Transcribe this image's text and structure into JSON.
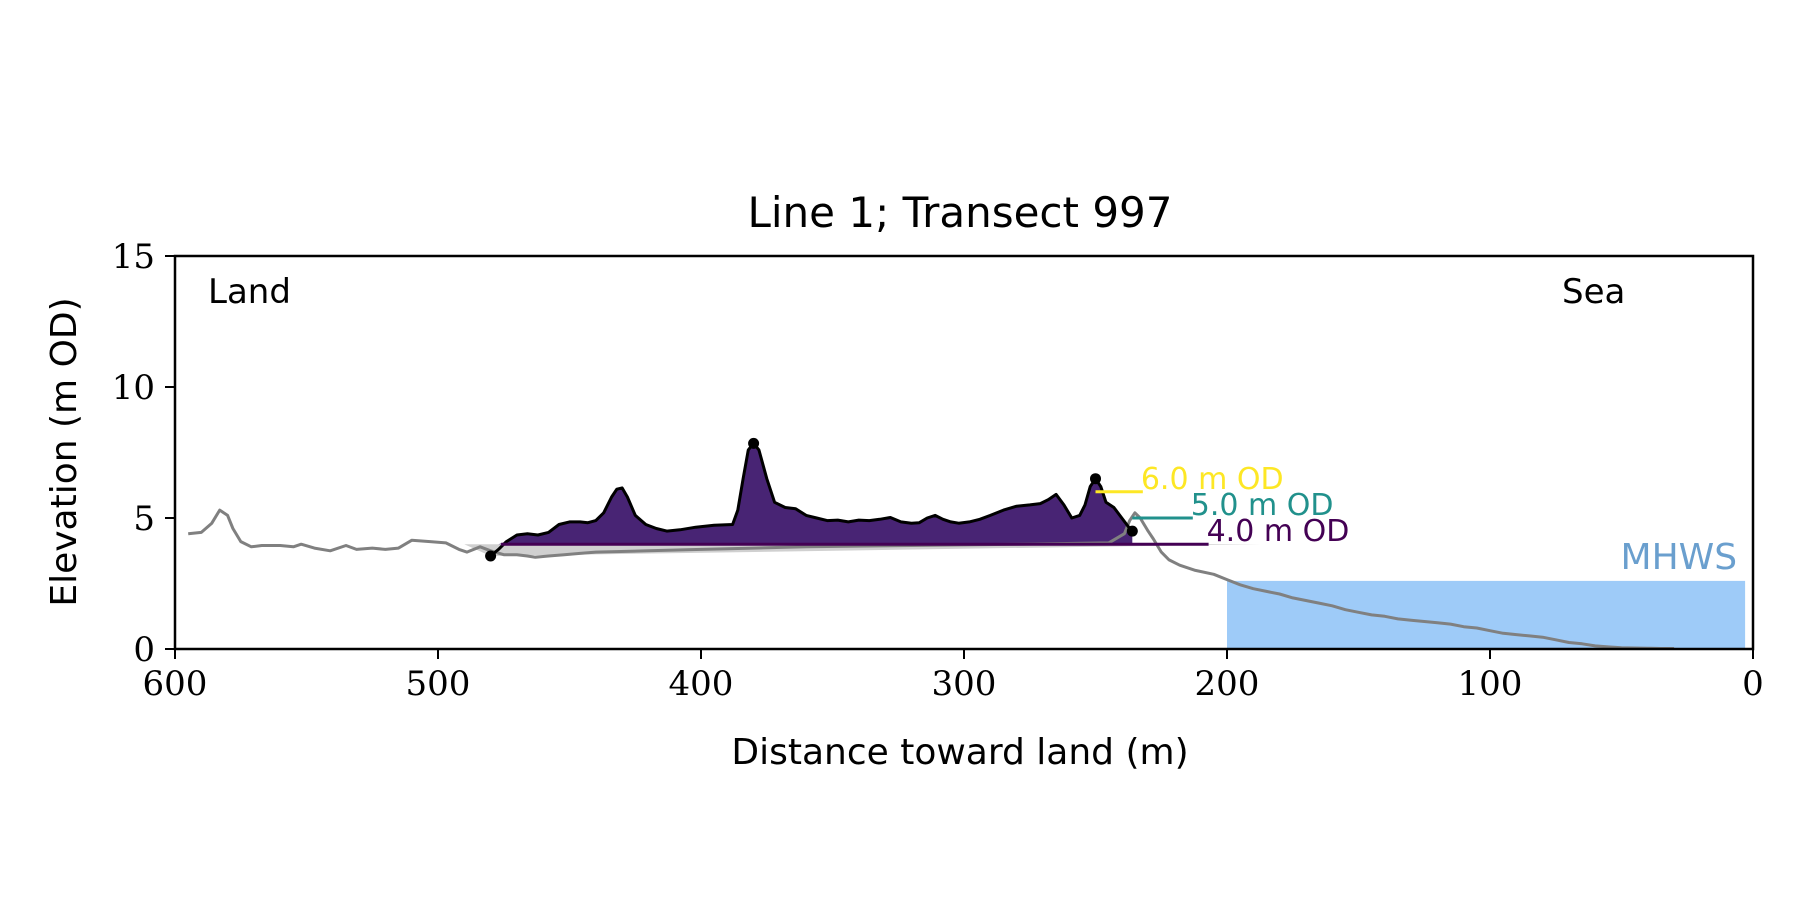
{
  "chart_data": {
    "type": "area",
    "title": "Line 1; Transect 997",
    "xlabel": "Distance toward land (m)",
    "ylabel": "Elevation (m OD)",
    "xlim": [
      600,
      0
    ],
    "ylim": [
      0,
      15
    ],
    "x_ticks": [
      600,
      500,
      400,
      300,
      200,
      100,
      0
    ],
    "y_ticks": [
      0,
      5,
      10,
      15
    ],
    "grid": false,
    "corner_labels": {
      "left": "Land",
      "right": "Sea"
    },
    "mhws": {
      "label": "MHWS",
      "elevation": 2.6,
      "x_from": 200,
      "x_to": 3,
      "color": "#9ecbf8",
      "label_color": "#6a9fce"
    },
    "profile": {
      "color": "#808080",
      "points": [
        [
          595,
          4.4
        ],
        [
          590,
          4.45
        ],
        [
          586,
          4.8
        ],
        [
          583,
          5.3
        ],
        [
          580,
          5.1
        ],
        [
          578,
          4.6
        ],
        [
          575,
          4.1
        ],
        [
          571,
          3.9
        ],
        [
          567,
          3.95
        ],
        [
          560,
          3.95
        ],
        [
          555,
          3.9
        ],
        [
          552,
          4.0
        ],
        [
          547,
          3.85
        ],
        [
          541,
          3.75
        ],
        [
          535,
          3.95
        ],
        [
          531,
          3.8
        ],
        [
          525,
          3.85
        ],
        [
          520,
          3.8
        ],
        [
          515,
          3.85
        ],
        [
          510,
          4.15
        ],
        [
          503,
          4.1
        ],
        [
          497,
          4.05
        ],
        [
          492,
          3.8
        ],
        [
          489,
          3.7
        ],
        [
          484,
          3.9
        ],
        [
          480,
          3.75
        ],
        [
          475,
          3.6
        ],
        [
          470,
          3.6
        ],
        [
          466,
          3.55
        ],
        [
          463,
          3.5
        ],
        [
          458,
          3.55
        ],
        [
          452,
          3.6
        ],
        [
          446,
          3.65
        ],
        [
          440,
          3.7
        ],
        [
          420,
          3.75
        ],
        [
          400,
          3.8
        ],
        [
          380,
          3.85
        ],
        [
          360,
          3.9
        ],
        [
          320,
          3.95
        ],
        [
          280,
          4.0
        ],
        [
          245,
          4.05
        ],
        [
          239,
          4.4
        ],
        [
          237,
          4.9
        ],
        [
          235,
          5.2
        ],
        [
          233,
          5.0
        ],
        [
          230,
          4.5
        ],
        [
          228,
          4.2
        ],
        [
          225,
          3.7
        ],
        [
          222,
          3.4
        ],
        [
          218,
          3.2
        ],
        [
          212,
          3.0
        ],
        [
          205,
          2.85
        ],
        [
          200,
          2.65
        ],
        [
          195,
          2.45
        ],
        [
          190,
          2.3
        ],
        [
          185,
          2.2
        ],
        [
          180,
          2.1
        ],
        [
          175,
          1.95
        ],
        [
          170,
          1.85
        ],
        [
          165,
          1.75
        ],
        [
          160,
          1.65
        ],
        [
          155,
          1.5
        ],
        [
          150,
          1.4
        ],
        [
          145,
          1.3
        ],
        [
          140,
          1.25
        ],
        [
          135,
          1.15
        ],
        [
          130,
          1.1
        ],
        [
          125,
          1.05
        ],
        [
          120,
          1.0
        ],
        [
          115,
          0.95
        ],
        [
          110,
          0.85
        ],
        [
          105,
          0.8
        ],
        [
          100,
          0.7
        ],
        [
          95,
          0.6
        ],
        [
          90,
          0.55
        ],
        [
          85,
          0.5
        ],
        [
          80,
          0.45
        ],
        [
          75,
          0.35
        ],
        [
          70,
          0.25
        ],
        [
          65,
          0.2
        ],
        [
          60,
          0.12
        ],
        [
          55,
          0.08
        ],
        [
          50,
          0.05
        ],
        [
          45,
          0.04
        ],
        [
          40,
          0.03
        ],
        [
          35,
          0.02
        ],
        [
          30,
          0.02
        ]
      ]
    },
    "dune": {
      "fill_color": "#482474",
      "line_color": "#000000",
      "points": [
        [
          480,
          3.55
        ],
        [
          477,
          3.8
        ],
        [
          474,
          4.1
        ],
        [
          470,
          4.35
        ],
        [
          466,
          4.4
        ],
        [
          462,
          4.35
        ],
        [
          458,
          4.45
        ],
        [
          454,
          4.75
        ],
        [
          450,
          4.85
        ],
        [
          446,
          4.85
        ],
        [
          443,
          4.82
        ],
        [
          440,
          4.9
        ],
        [
          437,
          5.2
        ],
        [
          434,
          5.8
        ],
        [
          432,
          6.1
        ],
        [
          430,
          6.15
        ],
        [
          428,
          5.8
        ],
        [
          425,
          5.1
        ],
        [
          421,
          4.75
        ],
        [
          417,
          4.6
        ],
        [
          413,
          4.5
        ],
        [
          408,
          4.55
        ],
        [
          402,
          4.65
        ],
        [
          395,
          4.72
        ],
        [
          388,
          4.75
        ],
        [
          386,
          5.3
        ],
        [
          384,
          6.5
        ],
        [
          382,
          7.6
        ],
        [
          380,
          7.85
        ],
        [
          378,
          7.6
        ],
        [
          375,
          6.5
        ],
        [
          372,
          5.6
        ],
        [
          368,
          5.4
        ],
        [
          364,
          5.35
        ],
        [
          360,
          5.1
        ],
        [
          356,
          5.0
        ],
        [
          352,
          4.9
        ],
        [
          348,
          4.92
        ],
        [
          344,
          4.85
        ],
        [
          340,
          4.92
        ],
        [
          336,
          4.9
        ],
        [
          332,
          4.95
        ],
        [
          328,
          5.02
        ],
        [
          324,
          4.85
        ],
        [
          320,
          4.8
        ],
        [
          317,
          4.82
        ],
        [
          314,
          5.0
        ],
        [
          311,
          5.1
        ],
        [
          308,
          4.95
        ],
        [
          305,
          4.85
        ],
        [
          302,
          4.8
        ],
        [
          298,
          4.85
        ],
        [
          294,
          4.95
        ],
        [
          290,
          5.1
        ],
        [
          285,
          5.3
        ],
        [
          280,
          5.45
        ],
        [
          275,
          5.5
        ],
        [
          271,
          5.55
        ],
        [
          268,
          5.7
        ],
        [
          265,
          5.9
        ],
        [
          262,
          5.5
        ],
        [
          259,
          5.0
        ],
        [
          256,
          5.1
        ],
        [
          254,
          5.5
        ],
        [
          252,
          6.2
        ],
        [
          250,
          6.5
        ],
        [
          248,
          6.2
        ],
        [
          246,
          5.6
        ],
        [
          243,
          5.4
        ],
        [
          240,
          5.0
        ],
        [
          237,
          4.6
        ],
        [
          236,
          4.5
        ]
      ],
      "markers": [
        [
          480,
          3.55
        ],
        [
          380,
          7.85
        ],
        [
          250,
          6.5
        ],
        [
          236,
          4.5
        ]
      ]
    },
    "baseline_wedge": {
      "color": "#d0d0d0"
    },
    "levels": [
      {
        "label": "6.0 m OD",
        "value": 6.0,
        "x_from": 250,
        "x_to": 232,
        "color": "#fde725"
      },
      {
        "label": "5.0 m OD",
        "value": 5.0,
        "x_from": 236,
        "x_to": 213,
        "color": "#21918c"
      },
      {
        "label": "4.0 m OD",
        "value": 4.0,
        "x_from": 476,
        "x_to": 207,
        "color": "#440154"
      }
    ]
  }
}
